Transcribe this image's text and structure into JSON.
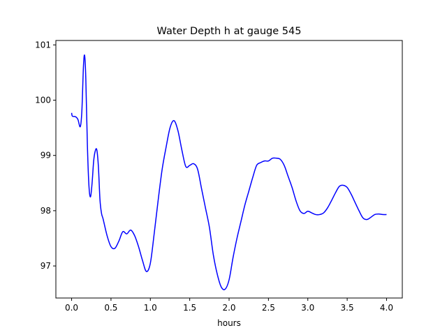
{
  "chart_data": {
    "type": "line",
    "title": "Water Depth h at gauge 545",
    "xlabel": "hours",
    "ylabel": "",
    "xlim": [
      -0.2,
      4.2
    ],
    "ylim": [
      96.42,
      101.08
    ],
    "x_ticks": [
      0.0,
      0.5,
      1.0,
      1.5,
      2.0,
      2.5,
      3.0,
      3.5,
      4.0
    ],
    "x_tick_labels": [
      "0.0",
      "0.5",
      "1.0",
      "1.5",
      "2.0",
      "2.5",
      "3.0",
      "3.5",
      "4.0"
    ],
    "y_ticks": [
      97,
      98,
      99,
      100,
      101
    ],
    "y_tick_labels": [
      "97",
      "98",
      "99",
      "100",
      "101"
    ],
    "grid": false,
    "series": [
      {
        "color": "#0000ff",
        "x": [
          0.0,
          0.01,
          0.05,
          0.08,
          0.11,
          0.13,
          0.15,
          0.165,
          0.18,
          0.2,
          0.22,
          0.24,
          0.26,
          0.28,
          0.3,
          0.32,
          0.34,
          0.36,
          0.38,
          0.4,
          0.45,
          0.5,
          0.55,
          0.6,
          0.65,
          0.7,
          0.75,
          0.8,
          0.85,
          0.9,
          0.95,
          1.0,
          1.05,
          1.1,
          1.15,
          1.2,
          1.25,
          1.3,
          1.35,
          1.4,
          1.45,
          1.5,
          1.55,
          1.6,
          1.65,
          1.7,
          1.75,
          1.8,
          1.85,
          1.9,
          1.95,
          2.0,
          2.05,
          2.1,
          2.15,
          2.2,
          2.25,
          2.3,
          2.35,
          2.4,
          2.45,
          2.5,
          2.55,
          2.6,
          2.65,
          2.7,
          2.75,
          2.8,
          2.85,
          2.9,
          2.95,
          3.0,
          3.05,
          3.1,
          3.15,
          3.2,
          3.25,
          3.3,
          3.35,
          3.4,
          3.45,
          3.5,
          3.55,
          3.6,
          3.65,
          3.7,
          3.75,
          3.8,
          3.85,
          3.9,
          3.95,
          4.0
        ],
        "y": [
          99.77,
          99.71,
          99.7,
          99.65,
          99.52,
          99.8,
          100.6,
          100.81,
          100.4,
          99.2,
          98.45,
          98.25,
          98.5,
          98.9,
          99.08,
          99.1,
          98.8,
          98.2,
          97.95,
          97.85,
          97.55,
          97.35,
          97.32,
          97.45,
          97.62,
          97.58,
          97.65,
          97.55,
          97.35,
          97.1,
          96.9,
          97.05,
          97.6,
          98.2,
          98.75,
          99.15,
          99.5,
          99.63,
          99.45,
          99.1,
          98.8,
          98.82,
          98.85,
          98.75,
          98.4,
          98.05,
          97.7,
          97.2,
          96.85,
          96.62,
          96.58,
          96.75,
          97.15,
          97.5,
          97.8,
          98.1,
          98.35,
          98.6,
          98.82,
          98.87,
          98.9,
          98.9,
          98.95,
          98.95,
          98.93,
          98.82,
          98.62,
          98.42,
          98.18,
          98.0,
          97.95,
          97.99,
          97.96,
          97.93,
          97.93,
          97.96,
          98.05,
          98.18,
          98.32,
          98.44,
          98.46,
          98.42,
          98.3,
          98.15,
          98.0,
          97.87,
          97.84,
          97.88,
          97.93,
          97.94,
          97.93,
          97.93
        ]
      }
    ]
  }
}
